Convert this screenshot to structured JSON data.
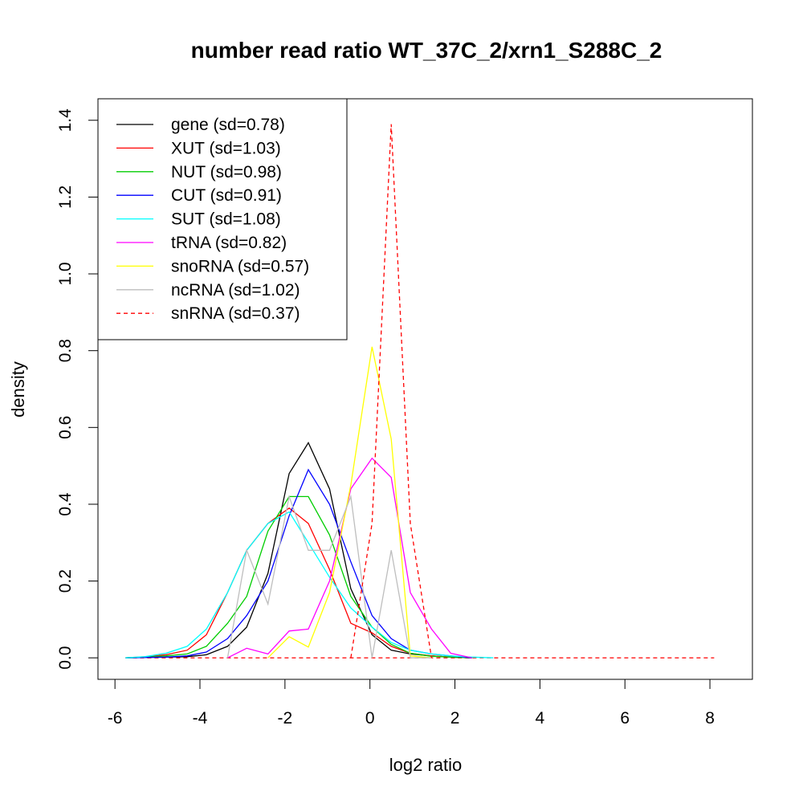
{
  "chart_data": {
    "type": "line",
    "title": "number read ratio WT_37C_2/xrn1_S288C_2",
    "xlabel": "log2 ratio",
    "ylabel": "density",
    "xlim": [
      -6.4,
      9.0
    ],
    "ylim": [
      -0.056,
      1.456
    ],
    "x_ticks": [
      -6,
      -4,
      -2,
      0,
      2,
      4,
      6,
      8
    ],
    "x_tick_labels": [
      "-6",
      "-4",
      "-2",
      "0",
      "2",
      "4",
      "6",
      "8"
    ],
    "y_ticks": [
      0.0,
      0.2,
      0.4,
      0.6,
      0.8,
      1.0,
      1.2,
      1.4
    ],
    "y_tick_labels": [
      "0.0",
      "0.2",
      "0.4",
      "0.6",
      "0.8",
      "1.0",
      "1.2",
      "1.4"
    ],
    "legend_position": "top-left",
    "series": [
      {
        "name": "gene (sd=0.78)",
        "color": "#000000",
        "dashed": false,
        "x": [
          -5.75,
          -5.3,
          -4.8,
          -4.3,
          -3.85,
          -3.35,
          -2.9,
          -2.4,
          -1.9,
          -1.45,
          -0.95,
          -0.45,
          0.05,
          0.5,
          0.95,
          1.45,
          1.9,
          2.4
        ],
        "y": [
          0,
          0.001,
          0.002,
          0.003,
          0.008,
          0.03,
          0.08,
          0.22,
          0.48,
          0.56,
          0.44,
          0.18,
          0.06,
          0.02,
          0.01,
          0.005,
          0.002,
          0
        ]
      },
      {
        "name": "XUT (sd=1.03)",
        "color": "#ff0000",
        "dashed": false,
        "x": [
          -5.75,
          -5.3,
          -4.8,
          -4.3,
          -3.85,
          -3.35,
          -2.9,
          -2.4,
          -1.9,
          -1.45,
          -0.95,
          -0.45,
          0.05,
          0.5,
          0.95,
          1.45,
          1.9,
          2.4
        ],
        "y": [
          0,
          0.003,
          0.008,
          0.02,
          0.06,
          0.17,
          0.28,
          0.35,
          0.39,
          0.35,
          0.23,
          0.09,
          0.065,
          0.03,
          0.012,
          0.005,
          0.002,
          0
        ]
      },
      {
        "name": "NUT (sd=0.98)",
        "color": "#00cd00",
        "dashed": false,
        "x": [
          -5.75,
          -5.3,
          -4.8,
          -4.3,
          -3.85,
          -3.35,
          -2.9,
          -2.4,
          -1.9,
          -1.45,
          -0.95,
          -0.45,
          0.05,
          0.5,
          0.95,
          1.45,
          1.9,
          2.4
        ],
        "y": [
          0,
          0.002,
          0.005,
          0.01,
          0.03,
          0.09,
          0.16,
          0.33,
          0.42,
          0.42,
          0.32,
          0.16,
          0.08,
          0.035,
          0.012,
          0.004,
          0.002,
          0
        ]
      },
      {
        "name": "CUT (sd=0.91)",
        "color": "#0000ff",
        "dashed": false,
        "x": [
          -5.75,
          -5.3,
          -4.8,
          -4.3,
          -3.85,
          -3.35,
          -2.9,
          -2.4,
          -1.9,
          -1.45,
          -0.95,
          -0.45,
          0.05,
          0.5,
          0.95,
          1.45,
          1.9,
          2.4
        ],
        "y": [
          0,
          0.001,
          0.002,
          0.005,
          0.015,
          0.05,
          0.11,
          0.2,
          0.37,
          0.49,
          0.4,
          0.25,
          0.11,
          0.05,
          0.02,
          0.01,
          0.005,
          0
        ]
      },
      {
        "name": "SUT (sd=1.08)",
        "color": "#00ffff",
        "dashed": false,
        "x": [
          -5.75,
          -5.3,
          -4.8,
          -4.3,
          -3.85,
          -3.35,
          -2.9,
          -2.4,
          -1.9,
          -1.45,
          -0.95,
          -0.45,
          0.05,
          0.5,
          0.95,
          1.45,
          1.9,
          2.4,
          2.9
        ],
        "y": [
          0,
          0.003,
          0.012,
          0.03,
          0.075,
          0.17,
          0.28,
          0.35,
          0.38,
          0.3,
          0.21,
          0.13,
          0.08,
          0.04,
          0.02,
          0.01,
          0.005,
          0.002,
          0
        ]
      },
      {
        "name": "tRNA (sd=0.82)",
        "color": "#ff00ff",
        "dashed": false,
        "x": [
          -3.35,
          -2.9,
          -2.4,
          -1.9,
          -1.45,
          -0.95,
          -0.45,
          0.05,
          0.5,
          0.95,
          1.45,
          1.9,
          2.4
        ],
        "y": [
          0,
          0.025,
          0.01,
          0.07,
          0.075,
          0.2,
          0.44,
          0.52,
          0.47,
          0.17,
          0.075,
          0.012,
          0
        ]
      },
      {
        "name": "snoRNA (sd=0.57)",
        "color": "#ffff00",
        "dashed": false,
        "x": [
          -2.4,
          -1.9,
          -1.45,
          -0.95,
          -0.45,
          0.05,
          0.5,
          0.95,
          1.45
        ],
        "y": [
          0,
          0.055,
          0.028,
          0.17,
          0.45,
          0.81,
          0.57,
          0.005,
          0
        ]
      },
      {
        "name": "ncRNA (sd=1.02)",
        "color": "#bebebe",
        "dashed": false,
        "x": [
          -3.35,
          -2.9,
          -2.4,
          -1.9,
          -1.45,
          -0.95,
          -0.45,
          0.05,
          0.5,
          0.95,
          1.45
        ],
        "y": [
          0,
          0.28,
          0.14,
          0.42,
          0.28,
          0.28,
          0.42,
          0,
          0.28,
          0,
          0
        ]
      },
      {
        "name": "snRNA (sd=0.37)",
        "color": "#ff0000",
        "dashed": true,
        "x": [
          -0.45,
          0.05,
          0.5,
          0.95,
          1.45
        ],
        "y": [
          0,
          0.35,
          1.39,
          0.35,
          0
        ]
      }
    ],
    "zero_baseline": {
      "x_start": -5.75,
      "x_end": 8.1
    }
  }
}
